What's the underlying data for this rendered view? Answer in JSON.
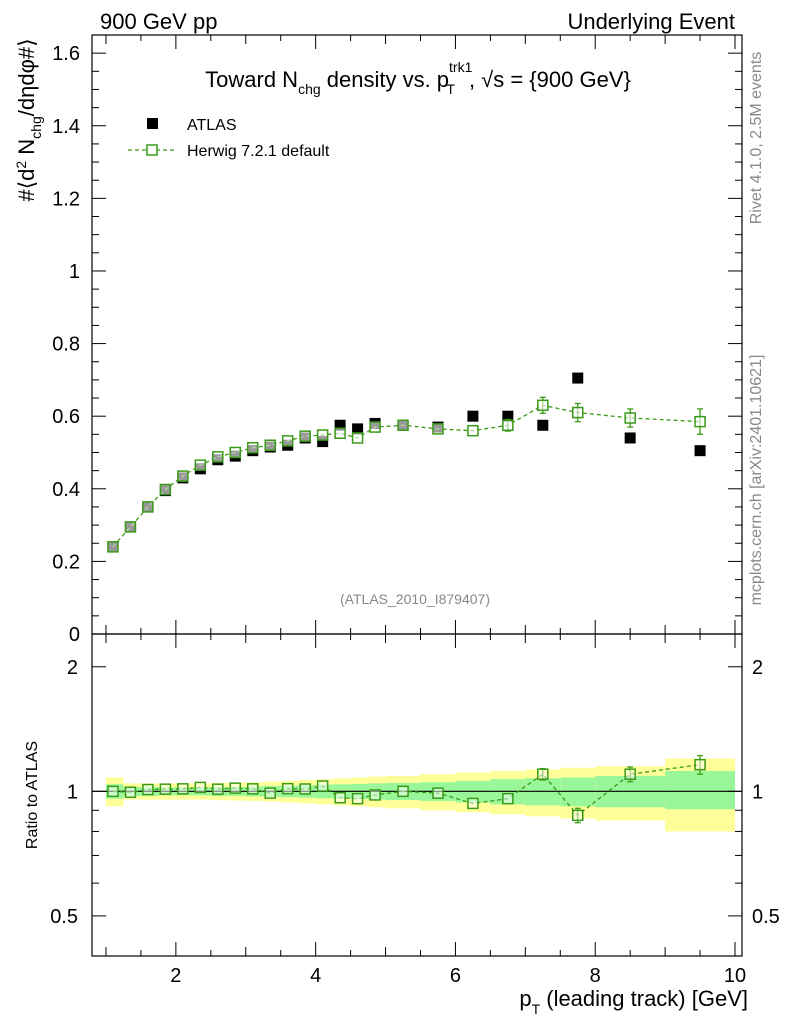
{
  "header": {
    "left": "900 GeV pp",
    "right": "Underlying Event"
  },
  "side_labels": {
    "rivet": "Rivet 4.1.0,  2.5M events",
    "mcplots": "mcplots.cern.ch [arXiv:2401.10621]"
  },
  "colors": {
    "data": "#000000",
    "mc": "#3a9a17",
    "band_inner": "#99f799",
    "band_outer": "#ffff99"
  },
  "chart_data": [
    {
      "type": "scatter",
      "title": {
        "part1": "Toward N",
        "sub1": "chg",
        "part2": " density vs. p",
        "sup2": "trk1",
        "sub2": "T",
        "part3": ", √s = {900 GeV}"
      },
      "ylabel": "#⟨d² N_chg/dηdφ#⟩",
      "ylim": [
        0,
        1.65
      ],
      "yticks": [
        0,
        0.2,
        0.4,
        0.6,
        0.8,
        1,
        1.2,
        1.4,
        1.6
      ],
      "ytick_labels": [
        "0",
        "0.2",
        "0.4",
        "0.6",
        "0.8",
        "1",
        "1.2",
        "1.4",
        "1.6"
      ],
      "watermark": "(ATLAS_2010_I879407)",
      "legend": {
        "placement": "top-left",
        "entries": [
          "ATLAS",
          "Herwig 7.2.1 default"
        ]
      },
      "series": [
        {
          "name": "ATLAS",
          "marker": "filled-square",
          "x": [
            1.1,
            1.35,
            1.6,
            1.85,
            2.1,
            2.35,
            2.6,
            2.85,
            3.1,
            3.35,
            3.6,
            3.85,
            4.1,
            4.35,
            4.6,
            4.85,
            5.25,
            5.75,
            6.25,
            6.75,
            7.25,
            7.75,
            8.5,
            9.5
          ],
          "y": [
            0.24,
            0.295,
            0.35,
            0.395,
            0.43,
            0.455,
            0.48,
            0.49,
            0.505,
            0.515,
            0.52,
            0.54,
            0.53,
            0.575,
            0.565,
            0.58,
            0.575,
            0.57,
            0.6,
            0.6,
            0.575,
            0.705,
            0.54,
            0.505
          ]
        },
        {
          "name": "Herwig 7.2.1 default",
          "marker": "open-square-dashed",
          "x": [
            1.1,
            1.35,
            1.6,
            1.85,
            2.1,
            2.35,
            2.6,
            2.85,
            3.1,
            3.35,
            3.6,
            3.85,
            4.1,
            4.35,
            4.6,
            4.85,
            5.25,
            5.75,
            6.25,
            6.75,
            7.25,
            7.75,
            8.5,
            9.5
          ],
          "y": [
            0.24,
            0.295,
            0.35,
            0.398,
            0.435,
            0.465,
            0.488,
            0.5,
            0.513,
            0.52,
            0.532,
            0.545,
            0.548,
            0.553,
            0.54,
            0.57,
            0.575,
            0.565,
            0.56,
            0.575,
            0.63,
            0.61,
            0.595,
            0.585
          ],
          "yerr": [
            0.004,
            0.004,
            0.004,
            0.004,
            0.004,
            0.004,
            0.004,
            0.004,
            0.004,
            0.004,
            0.004,
            0.004,
            0.004,
            0.005,
            0.006,
            0.007,
            0.008,
            0.01,
            0.012,
            0.016,
            0.022,
            0.025,
            0.025,
            0.035
          ]
        }
      ]
    },
    {
      "type": "line",
      "ylabel": "Ratio to ATLAS",
      "xlabel": "p_T (leading track) [GeV]",
      "xlim": [
        0.8,
        10.1
      ],
      "xticks": [
        2,
        4,
        6,
        8,
        10
      ],
      "xtick_labels": [
        "2",
        "4",
        "6",
        "8",
        "10"
      ],
      "ylim": [
        0.4,
        2.4
      ],
      "ytick_labels": [
        {
          "value": 2,
          "label": "2"
        },
        {
          "value": 1,
          "label": "1"
        },
        {
          "value": 0.5,
          "label": "0.5"
        }
      ],
      "reference_line": 1,
      "bands": {
        "edges": [
          1,
          1.25,
          1.5,
          1.75,
          2,
          2.25,
          2.5,
          2.75,
          3,
          3.25,
          3.5,
          3.75,
          4,
          4.25,
          4.5,
          4.75,
          5,
          5.5,
          6,
          6.5,
          7,
          7.5,
          8,
          9,
          10
        ],
        "inner_lo": [
          0.96,
          0.975,
          0.975,
          0.978,
          0.978,
          0.978,
          0.975,
          0.975,
          0.972,
          0.97,
          0.968,
          0.965,
          0.962,
          0.96,
          0.958,
          0.955,
          0.952,
          0.948,
          0.94,
          0.93,
          0.925,
          0.92,
          0.915,
          0.905
        ],
        "inner_hi": [
          1.04,
          1.025,
          1.025,
          1.022,
          1.022,
          1.022,
          1.025,
          1.025,
          1.028,
          1.03,
          1.032,
          1.035,
          1.038,
          1.04,
          1.042,
          1.045,
          1.048,
          1.052,
          1.06,
          1.07,
          1.075,
          1.08,
          1.09,
          1.12
        ],
        "outer_lo": [
          0.92,
          0.955,
          0.955,
          0.955,
          0.955,
          0.955,
          0.952,
          0.95,
          0.948,
          0.945,
          0.94,
          0.935,
          0.93,
          0.925,
          0.92,
          0.915,
          0.91,
          0.9,
          0.89,
          0.88,
          0.87,
          0.86,
          0.85,
          0.8
        ],
        "outer_hi": [
          1.08,
          1.045,
          1.045,
          1.045,
          1.045,
          1.045,
          1.048,
          1.05,
          1.052,
          1.055,
          1.06,
          1.065,
          1.07,
          1.075,
          1.08,
          1.085,
          1.09,
          1.1,
          1.11,
          1.12,
          1.13,
          1.14,
          1.15,
          1.2
        ]
      },
      "series": [
        {
          "name": "Herwig 7.2.1 default",
          "x": [
            1.1,
            1.35,
            1.6,
            1.85,
            2.1,
            2.35,
            2.6,
            2.85,
            3.1,
            3.35,
            3.6,
            3.85,
            4.1,
            4.35,
            4.6,
            4.85,
            5.25,
            5.75,
            6.25,
            6.75,
            7.25,
            7.75,
            8.5,
            9.5
          ],
          "y": [
            1.0,
            0.995,
            1.01,
            1.012,
            1.014,
            1.022,
            1.012,
            1.018,
            1.014,
            0.99,
            1.015,
            1.013,
            1.03,
            0.965,
            0.96,
            0.98,
            1.0,
            0.99,
            0.935,
            0.96,
            1.1,
            0.875,
            1.1,
            1.16
          ],
          "yerr": [
            0.01,
            0.01,
            0.01,
            0.01,
            0.01,
            0.01,
            0.01,
            0.01,
            0.01,
            0.01,
            0.01,
            0.01,
            0.012,
            0.012,
            0.012,
            0.015,
            0.015,
            0.018,
            0.02,
            0.025,
            0.035,
            0.035,
            0.045,
            0.06
          ]
        }
      ]
    }
  ]
}
